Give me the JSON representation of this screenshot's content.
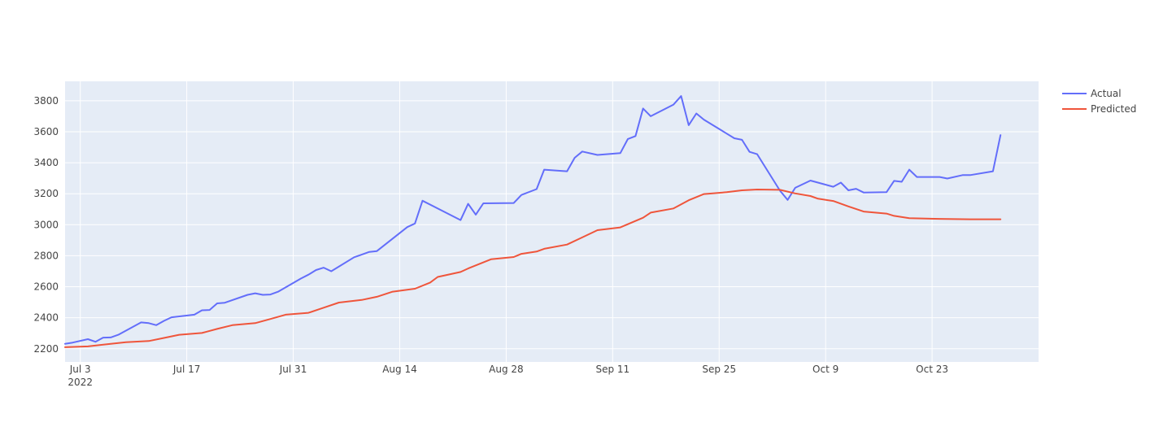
{
  "chart_data": {
    "type": "line",
    "title": "",
    "xlabel": "",
    "ylabel": "",
    "x_axis": {
      "type": "date",
      "range": [
        "2022-07-01",
        "2022-11-06"
      ],
      "ticks": [
        {
          "date": "2022-07-03",
          "label": "Jul 3",
          "sublabel": "2022"
        },
        {
          "date": "2022-07-17",
          "label": "Jul 17"
        },
        {
          "date": "2022-07-31",
          "label": "Jul 31"
        },
        {
          "date": "2022-08-14",
          "label": "Aug 14"
        },
        {
          "date": "2022-08-28",
          "label": "Aug 28"
        },
        {
          "date": "2022-09-11",
          "label": "Sep 11"
        },
        {
          "date": "2022-09-25",
          "label": "Sep 25"
        },
        {
          "date": "2022-10-09",
          "label": "Oct 9"
        },
        {
          "date": "2022-10-23",
          "label": "Oct 23"
        }
      ]
    },
    "y_axis": {
      "range": [
        2115,
        3925
      ],
      "ticks": [
        {
          "value": 2200,
          "label": "2200"
        },
        {
          "value": 2400,
          "label": "2400"
        },
        {
          "value": 2600,
          "label": "2600"
        },
        {
          "value": 2800,
          "label": "2800"
        },
        {
          "value": 3000,
          "label": "3000"
        },
        {
          "value": 3200,
          "label": "3200"
        },
        {
          "value": 3400,
          "label": "3400"
        },
        {
          "value": 3600,
          "label": "3600"
        },
        {
          "value": 3800,
          "label": "3800"
        }
      ]
    },
    "grid": true,
    "legend_position": "top-right",
    "series": [
      {
        "name": "Actual",
        "color": "#636efa",
        "points": [
          [
            "2022-07-01",
            2232
          ],
          [
            "2022-07-02",
            2240
          ],
          [
            "2022-07-04",
            2262
          ],
          [
            "2022-07-05",
            2245
          ],
          [
            "2022-07-06",
            2272
          ],
          [
            "2022-07-07",
            2273
          ],
          [
            "2022-07-08",
            2290
          ],
          [
            "2022-07-11",
            2370
          ],
          [
            "2022-07-12",
            2365
          ],
          [
            "2022-07-13",
            2352
          ],
          [
            "2022-07-14",
            2380
          ],
          [
            "2022-07-15",
            2403
          ],
          [
            "2022-07-18",
            2420
          ],
          [
            "2022-07-19",
            2448
          ],
          [
            "2022-07-20",
            2450
          ],
          [
            "2022-07-21",
            2493
          ],
          [
            "2022-07-22",
            2497
          ],
          [
            "2022-07-25",
            2548
          ],
          [
            "2022-07-26",
            2558
          ],
          [
            "2022-07-27",
            2548
          ],
          [
            "2022-07-28",
            2550
          ],
          [
            "2022-07-29",
            2568
          ],
          [
            "2022-08-01",
            2653
          ],
          [
            "2022-08-02",
            2678
          ],
          [
            "2022-08-03",
            2708
          ],
          [
            "2022-08-04",
            2723
          ],
          [
            "2022-08-05",
            2700
          ],
          [
            "2022-08-08",
            2790
          ],
          [
            "2022-08-09",
            2807
          ],
          [
            "2022-08-10",
            2825
          ],
          [
            "2022-08-11",
            2830
          ],
          [
            "2022-08-15",
            2985
          ],
          [
            "2022-08-16",
            3008
          ],
          [
            "2022-08-17",
            3155
          ],
          [
            "2022-08-22",
            3030
          ],
          [
            "2022-08-23",
            3135
          ],
          [
            "2022-08-24",
            3065
          ],
          [
            "2022-08-25",
            3138
          ],
          [
            "2022-08-29",
            3140
          ],
          [
            "2022-08-30",
            3192
          ],
          [
            "2022-09-01",
            3230
          ],
          [
            "2022-09-02",
            3355
          ],
          [
            "2022-09-05",
            3345
          ],
          [
            "2022-09-06",
            3432
          ],
          [
            "2022-09-07",
            3472
          ],
          [
            "2022-09-09",
            3450
          ],
          [
            "2022-09-12",
            3462
          ],
          [
            "2022-09-13",
            3553
          ],
          [
            "2022-09-14",
            3572
          ],
          [
            "2022-09-15",
            3750
          ],
          [
            "2022-09-16",
            3700
          ],
          [
            "2022-09-19",
            3775
          ],
          [
            "2022-09-20",
            3830
          ],
          [
            "2022-09-21",
            3642
          ],
          [
            "2022-09-22",
            3718
          ],
          [
            "2022-09-23",
            3678
          ],
          [
            "2022-09-27",
            3558
          ],
          [
            "2022-09-28",
            3548
          ],
          [
            "2022-09-29",
            3470
          ],
          [
            "2022-09-30",
            3455
          ],
          [
            "2022-10-03",
            3220
          ],
          [
            "2022-10-04",
            3160
          ],
          [
            "2022-10-05",
            3238
          ],
          [
            "2022-10-07",
            3285
          ],
          [
            "2022-10-10",
            3245
          ],
          [
            "2022-10-11",
            3272
          ],
          [
            "2022-10-12",
            3222
          ],
          [
            "2022-10-13",
            3232
          ],
          [
            "2022-10-14",
            3208
          ],
          [
            "2022-10-17",
            3210
          ],
          [
            "2022-10-18",
            3283
          ],
          [
            "2022-10-19",
            3277
          ],
          [
            "2022-10-20",
            3355
          ],
          [
            "2022-10-21",
            3308
          ],
          [
            "2022-10-24",
            3308
          ],
          [
            "2022-10-25",
            3298
          ],
          [
            "2022-10-27",
            3320
          ],
          [
            "2022-10-28",
            3320
          ],
          [
            "2022-10-31",
            3345
          ],
          [
            "2022-11-01",
            3578
          ]
        ]
      },
      {
        "name": "Predicted",
        "color": "#ef553b",
        "points": [
          [
            "2022-07-01",
            2210
          ],
          [
            "2022-07-04",
            2215
          ],
          [
            "2022-07-07",
            2232
          ],
          [
            "2022-07-09",
            2242
          ],
          [
            "2022-07-12",
            2250
          ],
          [
            "2022-07-14",
            2270
          ],
          [
            "2022-07-16",
            2290
          ],
          [
            "2022-07-19",
            2302
          ],
          [
            "2022-07-21",
            2328
          ],
          [
            "2022-07-23",
            2352
          ],
          [
            "2022-07-26",
            2365
          ],
          [
            "2022-07-28",
            2392
          ],
          [
            "2022-07-30",
            2420
          ],
          [
            "2022-08-02",
            2432
          ],
          [
            "2022-08-04",
            2465
          ],
          [
            "2022-08-06",
            2498
          ],
          [
            "2022-08-09",
            2515
          ],
          [
            "2022-08-11",
            2535
          ],
          [
            "2022-08-13",
            2567
          ],
          [
            "2022-08-16",
            2587
          ],
          [
            "2022-08-18",
            2627
          ],
          [
            "2022-08-19",
            2663
          ],
          [
            "2022-08-22",
            2695
          ],
          [
            "2022-08-23",
            2718
          ],
          [
            "2022-08-26",
            2777
          ],
          [
            "2022-08-29",
            2792
          ],
          [
            "2022-08-30",
            2812
          ],
          [
            "2022-09-01",
            2827
          ],
          [
            "2022-09-02",
            2845
          ],
          [
            "2022-09-05",
            2872
          ],
          [
            "2022-09-07",
            2918
          ],
          [
            "2022-09-09",
            2965
          ],
          [
            "2022-09-12",
            2983
          ],
          [
            "2022-09-15",
            3045
          ],
          [
            "2022-09-16",
            3078
          ],
          [
            "2022-09-19",
            3105
          ],
          [
            "2022-09-21",
            3158
          ],
          [
            "2022-09-23",
            3198
          ],
          [
            "2022-09-26",
            3210
          ],
          [
            "2022-09-28",
            3222
          ],
          [
            "2022-09-30",
            3227
          ],
          [
            "2022-10-03",
            3225
          ],
          [
            "2022-10-05",
            3202
          ],
          [
            "2022-10-07",
            3185
          ],
          [
            "2022-10-08",
            3168
          ],
          [
            "2022-10-10",
            3153
          ],
          [
            "2022-10-12",
            3118
          ],
          [
            "2022-10-14",
            3085
          ],
          [
            "2022-10-17",
            3072
          ],
          [
            "2022-10-18",
            3057
          ],
          [
            "2022-10-20",
            3042
          ],
          [
            "2022-10-24",
            3038
          ],
          [
            "2022-10-28",
            3035
          ],
          [
            "2022-11-01",
            3035
          ]
        ]
      }
    ]
  }
}
